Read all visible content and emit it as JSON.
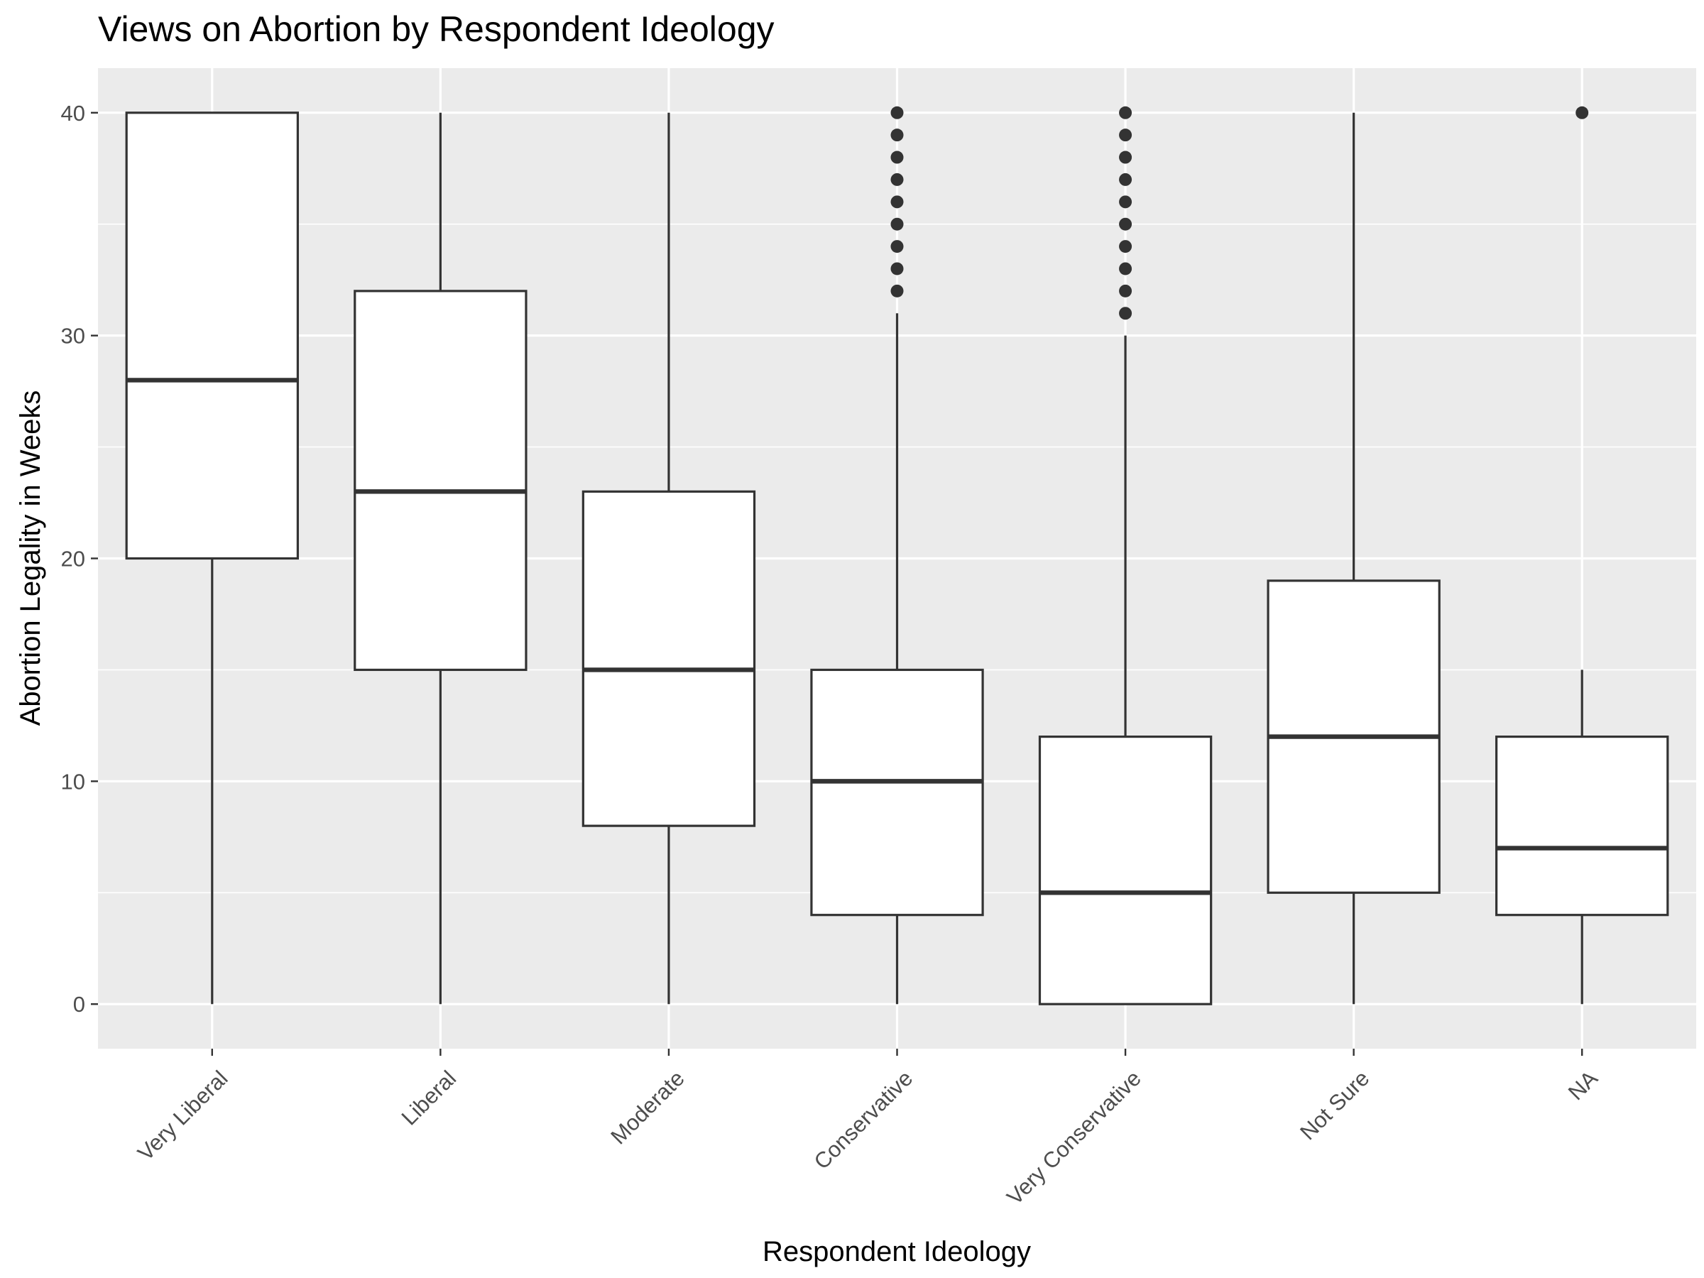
{
  "chart_data": {
    "type": "boxplot",
    "title": "Views on Abortion by Respondent Ideology",
    "xlabel": "Respondent Ideology",
    "ylabel": "Abortion Legality in Weeks",
    "ylim": [
      -2,
      42
    ],
    "yticks": [
      0,
      10,
      20,
      30,
      40
    ],
    "grid": true,
    "legend": "none",
    "colors": {
      "panel": "#ebebeb",
      "grid": "#ffffff",
      "box_fill": "#ffffff",
      "line": "#333333"
    },
    "categories": [
      "Very Liberal",
      "Liberal",
      "Moderate",
      "Conservative",
      "Very Conservative",
      "Not Sure",
      "NA"
    ],
    "boxes": [
      {
        "category": "Very Liberal",
        "whisker_low": 0,
        "q1": 20,
        "median": 28,
        "q3": 40,
        "whisker_high": 40,
        "outliers": []
      },
      {
        "category": "Liberal",
        "whisker_low": 0,
        "q1": 15,
        "median": 23,
        "q3": 32,
        "whisker_high": 40,
        "outliers": []
      },
      {
        "category": "Moderate",
        "whisker_low": 0,
        "q1": 8,
        "median": 15,
        "q3": 23,
        "whisker_high": 40,
        "outliers": []
      },
      {
        "category": "Conservative",
        "whisker_low": 0,
        "q1": 4,
        "median": 10,
        "q3": 15,
        "whisker_high": 31,
        "outliers": [
          32,
          33,
          34,
          35,
          36,
          37,
          38,
          39,
          40
        ]
      },
      {
        "category": "Very Conservative",
        "whisker_low": 0,
        "q1": 0,
        "median": 5,
        "q3": 12,
        "whisker_high": 30,
        "outliers": [
          31,
          32,
          33,
          34,
          35,
          36,
          37,
          38,
          39,
          40
        ]
      },
      {
        "category": "Not Sure",
        "whisker_low": 0,
        "q1": 5,
        "median": 12,
        "q3": 19,
        "whisker_high": 40,
        "outliers": []
      },
      {
        "category": "NA",
        "whisker_low": 0,
        "q1": 4,
        "median": 7,
        "q3": 12,
        "whisker_high": 15,
        "outliers": [
          40
        ]
      }
    ]
  }
}
